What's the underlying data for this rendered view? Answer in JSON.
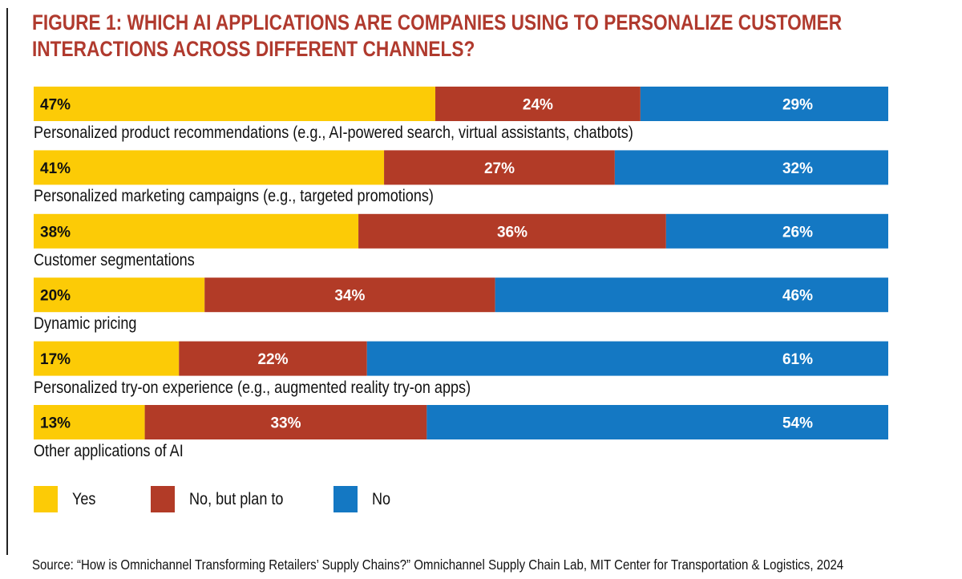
{
  "chart_data": {
    "type": "bar",
    "orientation": "horizontal",
    "stacked": true,
    "title": "FIGURE 1: WHICH AI APPLICATIONS ARE COMPANIES USING TO PERSONALIZE CUSTOMER INTERACTIONS ACROSS DIFFERENT CHANNELS?",
    "title_lines": [
      "FIGURE 1: WHICH AI APPLICATIONS ARE COMPANIES USING TO PERSONALIZE CUSTOMER",
      "INTERACTIONS ACROSS DIFFERENT CHANNELS?"
    ],
    "categories": [
      "Personalized product recommendations (e.g., AI-powered search, virtual assistants, chatbots)",
      "Personalized marketing campaigns (e.g., targeted promotions)",
      "Customer segmentations",
      "Dynamic pricing",
      "Personalized try-on experience (e.g., augmented reality try-on apps)",
      "Other applications of AI"
    ],
    "series": [
      {
        "name": "Yes",
        "color": "#fccb06",
        "values": [
          47,
          41,
          38,
          20,
          17,
          13
        ]
      },
      {
        "name": "No, but plan to",
        "color": "#b23b27",
        "values": [
          24,
          27,
          36,
          34,
          22,
          33
        ]
      },
      {
        "name": "No",
        "color": "#1478c3",
        "values": [
          29,
          32,
          26,
          46,
          61,
          54
        ]
      }
    ],
    "xlim": [
      0,
      100
    ],
    "unit": "%",
    "legend_position": "bottom-left",
    "grid": false,
    "source": "Source: “How is Omnichannel Transforming Retailers’ Supply Chains?” Omnichannel Supply Chain Lab, MIT Center for Transportation & Logistics, 2024"
  }
}
